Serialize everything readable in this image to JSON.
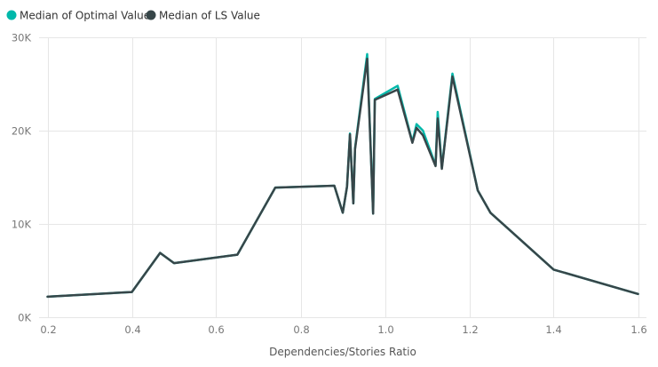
{
  "chart_data": {
    "type": "line",
    "title": "",
    "xlabel": "Dependencies/Stories Ratio",
    "ylabel": "",
    "xlim": [
      0.18,
      1.62
    ],
    "ylim": [
      0,
      30000
    ],
    "x_ticks": [
      0.2,
      0.4,
      0.6,
      0.8,
      1.0,
      1.2,
      1.4,
      1.6
    ],
    "x_tick_labels": [
      "0.2",
      "0.4",
      "0.6",
      "0.8",
      "1.0",
      "1.2",
      "1.4",
      "1.6"
    ],
    "y_ticks": [
      0,
      10000,
      20000,
      30000
    ],
    "y_tick_labels": [
      "0K",
      "10K",
      "20K",
      "30K"
    ],
    "grid": true,
    "legend_position": "top-left",
    "series": [
      {
        "name": "Median of Optimal Value",
        "color": "#01B8AA",
        "points": [
          [
            0.2,
            2200
          ],
          [
            0.4,
            2700
          ],
          [
            0.467,
            6900
          ],
          [
            0.5,
            5800
          ],
          [
            0.65,
            6700
          ],
          [
            0.74,
            13900
          ],
          [
            0.88,
            14100
          ],
          [
            0.9,
            11200
          ],
          [
            0.91,
            14000
          ],
          [
            0.917,
            19700
          ],
          [
            0.925,
            12200
          ],
          [
            0.929,
            18100
          ],
          [
            0.958,
            28200
          ],
          [
            0.972,
            11100
          ],
          [
            0.976,
            23400
          ],
          [
            1.03,
            24800
          ],
          [
            1.065,
            18800
          ],
          [
            1.075,
            20700
          ],
          [
            1.09,
            20000
          ],
          [
            1.12,
            16300
          ],
          [
            1.125,
            22000
          ],
          [
            1.135,
            16000
          ],
          [
            1.16,
            26100
          ],
          [
            1.22,
            13600
          ],
          [
            1.25,
            11200
          ],
          [
            1.4,
            5100
          ],
          [
            1.6,
            2500
          ]
        ]
      },
      {
        "name": "Median of LS Value",
        "color": "#374649",
        "points": [
          [
            0.2,
            2200
          ],
          [
            0.4,
            2700
          ],
          [
            0.467,
            6900
          ],
          [
            0.5,
            5800
          ],
          [
            0.65,
            6700
          ],
          [
            0.74,
            13900
          ],
          [
            0.88,
            14100
          ],
          [
            0.9,
            11200
          ],
          [
            0.91,
            14000
          ],
          [
            0.917,
            19600
          ],
          [
            0.925,
            12200
          ],
          [
            0.929,
            18000
          ],
          [
            0.958,
            27700
          ],
          [
            0.972,
            11100
          ],
          [
            0.976,
            23300
          ],
          [
            1.03,
            24400
          ],
          [
            1.065,
            18700
          ],
          [
            1.075,
            20300
          ],
          [
            1.09,
            19500
          ],
          [
            1.12,
            16200
          ],
          [
            1.125,
            21300
          ],
          [
            1.135,
            15900
          ],
          [
            1.16,
            25800
          ],
          [
            1.22,
            13600
          ],
          [
            1.25,
            11200
          ],
          [
            1.4,
            5100
          ],
          [
            1.6,
            2500
          ]
        ]
      }
    ]
  }
}
